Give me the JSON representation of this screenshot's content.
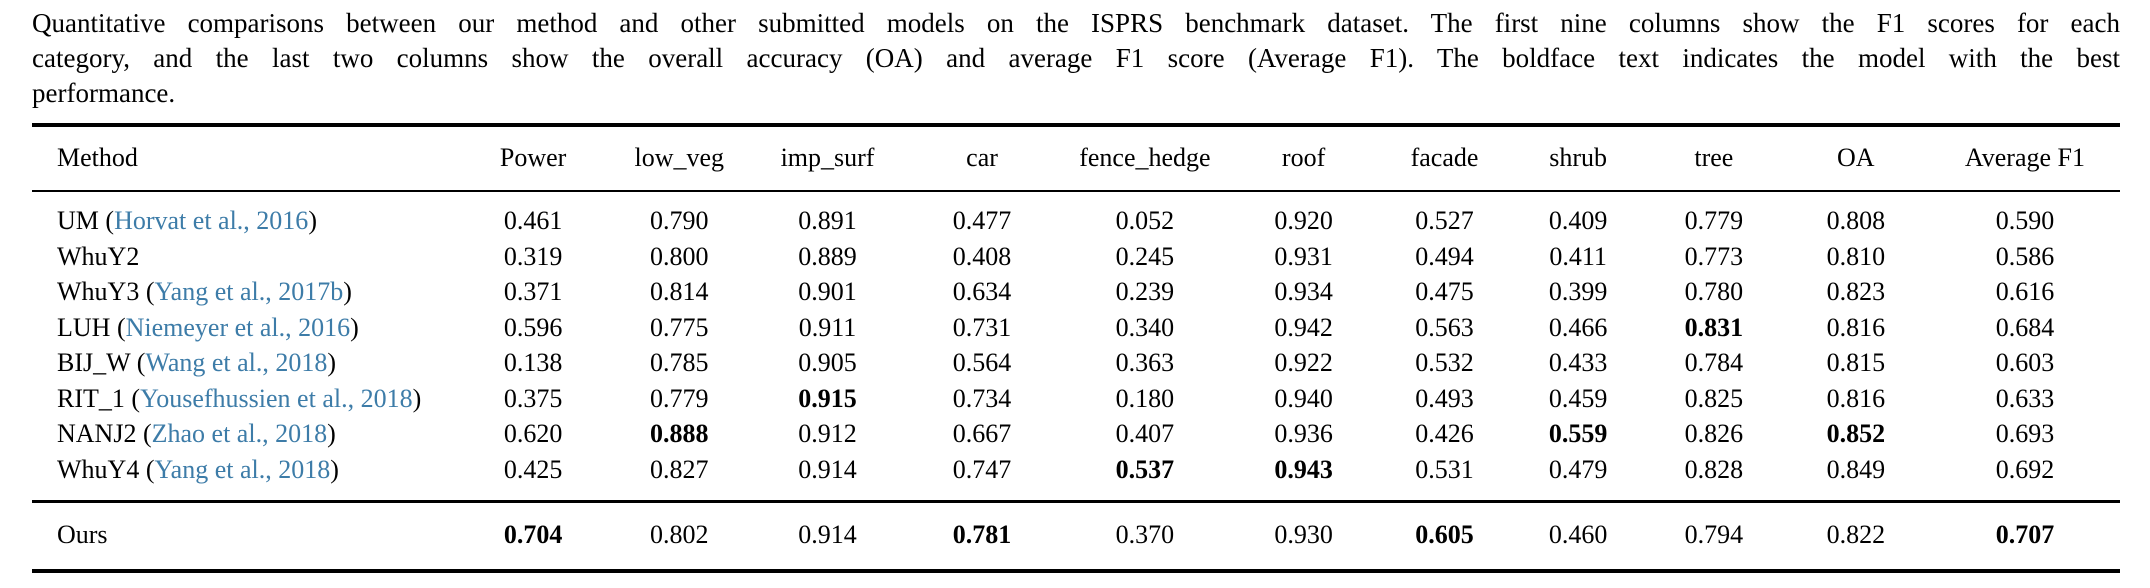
{
  "caption": {
    "line1": "Quantitative comparisons between our method and other submitted models on the ISPRS benchmark dataset. The first nine columns show the F1 scores for each",
    "line2": "category, and the last two columns show the overall accuracy (OA) and average F1 score (Average F1). The boldface text indicates the model with the best",
    "line3": "performance."
  },
  "colors": {
    "text": "#000000",
    "rule": "#000000",
    "citation_link": "#3d7ca8",
    "background": "#ffffff"
  },
  "table": {
    "columns": [
      "Method",
      "Power",
      "low_veg",
      "imp_surf",
      "car",
      "fence_hedge",
      "roof",
      "facade",
      "shrub",
      "tree",
      "OA",
      "Average F1"
    ],
    "rows": [
      {
        "method": "UM",
        "citation": "Horvat et al., 2016",
        "values": [
          "0.461",
          "0.790",
          "0.891",
          "0.477",
          "0.052",
          "0.920",
          "0.527",
          "0.409",
          "0.779",
          "0.808",
          "0.590"
        ],
        "bold": []
      },
      {
        "method": "WhuY2",
        "citation": null,
        "values": [
          "0.319",
          "0.800",
          "0.889",
          "0.408",
          "0.245",
          "0.931",
          "0.494",
          "0.411",
          "0.773",
          "0.810",
          "0.586"
        ],
        "bold": []
      },
      {
        "method": "WhuY3",
        "citation": "Yang et al., 2017b",
        "values": [
          "0.371",
          "0.814",
          "0.901",
          "0.634",
          "0.239",
          "0.934",
          "0.475",
          "0.399",
          "0.780",
          "0.823",
          "0.616"
        ],
        "bold": []
      },
      {
        "method": "LUH",
        "citation": "Niemeyer et al., 2016",
        "values": [
          "0.596",
          "0.775",
          "0.911",
          "0.731",
          "0.340",
          "0.942",
          "0.563",
          "0.466",
          "0.831",
          "0.816",
          "0.684"
        ],
        "bold": [
          8
        ]
      },
      {
        "method": "BIJ_W",
        "citation": "Wang et al., 2018",
        "values": [
          "0.138",
          "0.785",
          "0.905",
          "0.564",
          "0.363",
          "0.922",
          "0.532",
          "0.433",
          "0.784",
          "0.815",
          "0.603"
        ],
        "bold": []
      },
      {
        "method": "RIT_1",
        "citation": "Yousefhussien et al., 2018",
        "values": [
          "0.375",
          "0.779",
          "0.915",
          "0.734",
          "0.180",
          "0.940",
          "0.493",
          "0.459",
          "0.825",
          "0.816",
          "0.633"
        ],
        "bold": [
          2
        ]
      },
      {
        "method": "NANJ2",
        "citation": "Zhao et al., 2018",
        "values": [
          "0.620",
          "0.888",
          "0.912",
          "0.667",
          "0.407",
          "0.936",
          "0.426",
          "0.559",
          "0.826",
          "0.852",
          "0.693"
        ],
        "bold": [
          1,
          7,
          9
        ]
      },
      {
        "method": "WhuY4",
        "citation": "Yang et al., 2018",
        "values": [
          "0.425",
          "0.827",
          "0.914",
          "0.747",
          "0.537",
          "0.943",
          "0.531",
          "0.479",
          "0.828",
          "0.849",
          "0.692"
        ],
        "bold": [
          4,
          5
        ]
      }
    ],
    "ours_row": {
      "method": "Ours",
      "citation": null,
      "values": [
        "0.704",
        "0.802",
        "0.914",
        "0.781",
        "0.370",
        "0.930",
        "0.605",
        "0.460",
        "0.794",
        "0.822",
        "0.707"
      ],
      "bold": [
        0,
        3,
        6,
        10
      ]
    }
  }
}
